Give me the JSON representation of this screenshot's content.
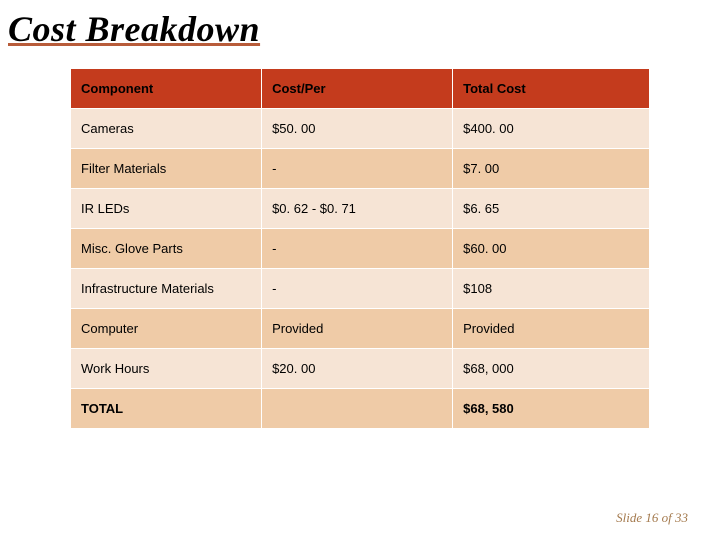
{
  "title": "Cost Breakdown",
  "columns": [
    "Component",
    "Cost/Per",
    "Total Cost"
  ],
  "rows": [
    {
      "component": "Cameras",
      "per": "$50. 00",
      "total": "$400. 00"
    },
    {
      "component": "Filter Materials",
      "per": "-",
      "total": "$7. 00"
    },
    {
      "component": "IR LEDs",
      "per": "$0. 62 - $0. 71",
      "total": "$6. 65"
    },
    {
      "component": "Misc. Glove Parts",
      "per": "-",
      "total": "$60. 00"
    },
    {
      "component": "Infrastructure Materials",
      "per": "-",
      "total": "$108"
    },
    {
      "component": "Computer",
      "per": "Provided",
      "total": "Provided"
    },
    {
      "component": "Work Hours",
      "per": "$20. 00",
      "total": "$68, 000"
    },
    {
      "component": "TOTAL",
      "per": "",
      "total": "$68, 580"
    }
  ],
  "footer": "Slide 16 of 33",
  "colors": {
    "header_bg": "#c43b1d",
    "row_odd_bg": "#f6e4d5",
    "row_even_bg": "#efcba7",
    "underline": "#b85c3a",
    "footer_text": "#a47a4e"
  },
  "fonts": {
    "title_family": "Georgia, serif",
    "title_size_pt": 27,
    "body_family": "Verdana, sans-serif",
    "body_size_pt": 10
  }
}
